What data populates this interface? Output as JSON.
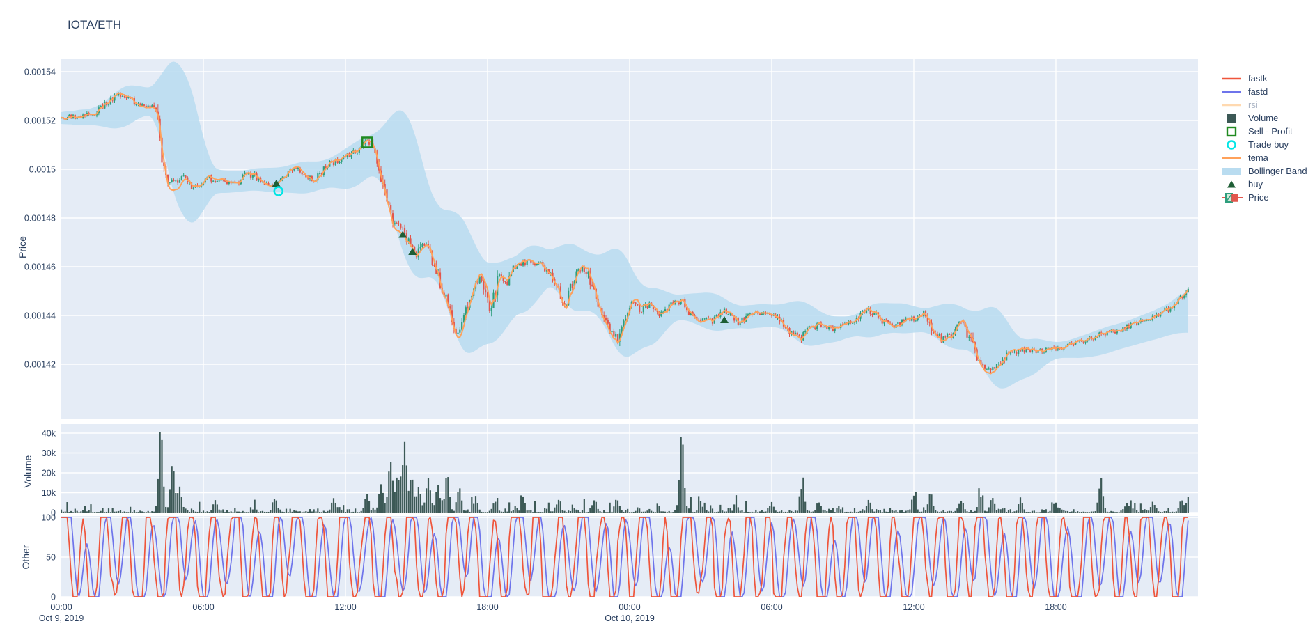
{
  "title": "IOTA/ETH",
  "colors": {
    "plot_bg": "#e5ecf6",
    "grid": "#ffffff",
    "text": "#2a3f5f",
    "muted_text": "#aab4c4",
    "candle_up": "#2f9e7d",
    "candle_down": "#e2564d",
    "volume_bar": "#3c5956",
    "tema": "#ffa15a",
    "bollinger": "#b9dcf0",
    "fastk": "#ef553b",
    "fastd": "#6e74eb",
    "rsi_muted": "#ffd9b0",
    "buy_marker": "#1e5e35",
    "sell_profit": "#208a20",
    "trade_buy": "#00e5e5"
  },
  "legend": {
    "items": [
      {
        "label": "fastk",
        "swatch": "line",
        "color": "#ef553b",
        "muted": false
      },
      {
        "label": "fastd",
        "swatch": "line",
        "color": "#6e74eb",
        "muted": false
      },
      {
        "label": "rsi",
        "swatch": "line",
        "color": "#ffd9b0",
        "muted": true
      },
      {
        "label": "Volume",
        "swatch": "square-fill",
        "color": "#3c5956",
        "muted": false
      },
      {
        "label": "Sell - Profit",
        "swatch": "square-open",
        "color": "#208a20",
        "muted": false
      },
      {
        "label": "Trade buy",
        "swatch": "circle-open",
        "color": "#00e5e5",
        "muted": false
      },
      {
        "label": "tema",
        "swatch": "line",
        "color": "#ffa15a",
        "muted": false
      },
      {
        "label": "Bollinger Band",
        "swatch": "band",
        "color": "#b9dcf0",
        "muted": false
      },
      {
        "label": "buy",
        "swatch": "triangle",
        "color": "#1e5e35",
        "muted": false
      },
      {
        "label": "Price",
        "swatch": "candle",
        "color": "#2f9e7d",
        "muted": false
      }
    ]
  },
  "axes": {
    "x": {
      "ticks": [
        {
          "hour": 0,
          "label": "00:00",
          "date": "Oct 9, 2019"
        },
        {
          "hour": 6,
          "label": "06:00",
          "date": ""
        },
        {
          "hour": 12,
          "label": "12:00",
          "date": ""
        },
        {
          "hour": 18,
          "label": "18:00",
          "date": ""
        },
        {
          "hour": 24,
          "label": "00:00",
          "date": "Oct 10, 2019"
        },
        {
          "hour": 30,
          "label": "06:00",
          "date": ""
        },
        {
          "hour": 36,
          "label": "12:00",
          "date": ""
        },
        {
          "hour": 42,
          "label": "18:00",
          "date": ""
        }
      ]
    },
    "price": {
      "title": "Price",
      "tick_labels": [
        "0.00154",
        "0.00152",
        "0.0015",
        "0.00148",
        "0.00146",
        "0.00144",
        "0.00142"
      ],
      "tick_values": [
        0.00154,
        0.00152,
        0.0015,
        0.00148,
        0.00146,
        0.00144,
        0.00142
      ]
    },
    "volume": {
      "title": "Volume",
      "tick_labels": [
        "40k",
        "30k",
        "20k",
        "10k",
        "0"
      ],
      "tick_values": [
        40000,
        30000,
        20000,
        10000,
        0
      ]
    },
    "other": {
      "title": "Other",
      "tick_labels": [
        "100",
        "50",
        "0"
      ],
      "tick_values": [
        100,
        50,
        0
      ]
    }
  },
  "chart_data": [
    {
      "type": "candlestick",
      "panel": "price",
      "pair": "IOTA/ETH",
      "x_unit": "hours since Oct 9, 2019 00:00",
      "x_range": [
        0,
        48
      ],
      "interval_minutes": 5,
      "y_range": [
        0.0013977,
        0.0015451
      ],
      "overlays": [
        "tema",
        "Bollinger Band",
        "buy",
        "Sell - Profit",
        "Trade buy"
      ],
      "close_keypoints": [
        [
          0,
          0.001521
        ],
        [
          0.7,
          0.0015215
        ],
        [
          1.4,
          0.001523
        ],
        [
          2.0,
          0.001528
        ],
        [
          2.4,
          0.001531
        ],
        [
          2.8,
          0.001529
        ],
        [
          3.3,
          0.001526
        ],
        [
          3.9,
          0.0015255
        ],
        [
          4.05,
          0.001522
        ],
        [
          4.3,
          0.0015
        ],
        [
          4.55,
          0.001494
        ],
        [
          5.1,
          0.0014965
        ],
        [
          5.6,
          0.001492
        ],
        [
          6.2,
          0.0014965
        ],
        [
          6.8,
          0.001495
        ],
        [
          7.4,
          0.0014945
        ],
        [
          7.9,
          0.0014985
        ],
        [
          8.3,
          0.001496
        ],
        [
          8.7,
          0.001493
        ],
        [
          9.1,
          0.0014935
        ],
        [
          9.5,
          0.0014975
        ],
        [
          9.9,
          0.001501
        ],
        [
          10.3,
          0.001498
        ],
        [
          10.7,
          0.001495
        ],
        [
          11.2,
          0.0015015
        ],
        [
          11.7,
          0.001504
        ],
        [
          12.2,
          0.001506
        ],
        [
          12.6,
          0.001509
        ],
        [
          12.9,
          0.001511
        ],
        [
          13.1,
          0.001509
        ],
        [
          13.4,
          0.001502
        ],
        [
          13.7,
          0.001489
        ],
        [
          14.0,
          0.001479
        ],
        [
          14.4,
          0.001475
        ],
        [
          14.7,
          0.001469
        ],
        [
          15.0,
          0.001464
        ],
        [
          15.3,
          0.00147
        ],
        [
          15.6,
          0.001465
        ],
        [
          15.9,
          0.001456
        ],
        [
          16.3,
          0.001445
        ],
        [
          16.7,
          0.001433
        ],
        [
          17.0,
          0.00144
        ],
        [
          17.4,
          0.001452
        ],
        [
          17.7,
          0.001455
        ],
        [
          18.1,
          0.0014415
        ],
        [
          18.5,
          0.0014575
        ],
        [
          18.8,
          0.001453
        ],
        [
          19.2,
          0.001461
        ],
        [
          19.7,
          0.001462
        ],
        [
          20.2,
          0.001461
        ],
        [
          20.6,
          0.001458
        ],
        [
          21.0,
          0.00145
        ],
        [
          21.3,
          0.0014445
        ],
        [
          21.8,
          0.00146
        ],
        [
          22.2,
          0.001458
        ],
        [
          22.6,
          0.001447
        ],
        [
          23.1,
          0.001435
        ],
        [
          23.5,
          0.00143
        ],
        [
          23.8,
          0.00144
        ],
        [
          24.1,
          0.001445
        ],
        [
          24.5,
          0.001442
        ],
        [
          24.9,
          0.001445
        ],
        [
          25.3,
          0.00144
        ],
        [
          25.7,
          0.001444
        ],
        [
          26.2,
          0.001446
        ],
        [
          26.6,
          0.00144
        ],
        [
          27.0,
          0.001438
        ],
        [
          27.5,
          0.001438
        ],
        [
          27.9,
          0.001442
        ],
        [
          28.3,
          0.00144
        ],
        [
          28.6,
          0.001437
        ],
        [
          29.0,
          0.00144
        ],
        [
          29.5,
          0.001441
        ],
        [
          30.0,
          0.001441
        ],
        [
          30.4,
          0.001437
        ],
        [
          30.8,
          0.001433
        ],
        [
          31.2,
          0.00143
        ],
        [
          31.6,
          0.001435
        ],
        [
          32.1,
          0.001436
        ],
        [
          32.6,
          0.001434
        ],
        [
          33.0,
          0.001436
        ],
        [
          33.5,
          0.001438
        ],
        [
          34.0,
          0.001443
        ],
        [
          34.4,
          0.00144
        ],
        [
          34.8,
          0.001437
        ],
        [
          35.2,
          0.001436
        ],
        [
          35.7,
          0.001438
        ],
        [
          36.1,
          0.001439
        ],
        [
          36.5,
          0.001441
        ],
        [
          36.8,
          0.001434
        ],
        [
          37.2,
          0.00143
        ],
        [
          37.6,
          0.001432
        ],
        [
          38.0,
          0.001437
        ],
        [
          38.4,
          0.00143
        ],
        [
          38.7,
          0.001421
        ],
        [
          39.1,
          0.001417
        ],
        [
          39.5,
          0.001419
        ],
        [
          40.0,
          0.001424
        ],
        [
          40.6,
          0.001426
        ],
        [
          41.2,
          0.001425
        ],
        [
          41.8,
          0.001426
        ],
        [
          42.4,
          0.001427
        ],
        [
          43.0,
          0.001429
        ],
        [
          43.6,
          0.001431
        ],
        [
          44.2,
          0.001433
        ],
        [
          44.8,
          0.001434
        ],
        [
          45.4,
          0.001437
        ],
        [
          46.0,
          0.001439
        ],
        [
          46.5,
          0.001441
        ],
        [
          47.0,
          0.001445
        ],
        [
          47.35,
          0.001448
        ],
        [
          47.7,
          0.001452
        ]
      ],
      "markers": {
        "buy": [
          [
            9.08,
            0.001494
          ],
          [
            14.42,
            0.001473
          ],
          [
            14.83,
            0.001466
          ],
          [
            28.0,
            0.001438
          ]
        ],
        "trade_buy": [
          [
            9.17,
            0.001491
          ]
        ],
        "sell_profit": [
          [
            12.92,
            0.001511
          ]
        ]
      },
      "bollinger": {
        "window_candles": 24,
        "stddev_mult": 2.05
      },
      "tema_span": 9
    },
    {
      "type": "bar",
      "panel": "volume",
      "y_range": [
        0,
        44500
      ],
      "base_noise_range": [
        250,
        2400
      ],
      "spikes": [
        [
          4.2,
          40500
        ],
        [
          4.7,
          24000
        ],
        [
          5.0,
          12000
        ],
        [
          6.5,
          6000
        ],
        [
          9.0,
          6500
        ],
        [
          11.5,
          7000
        ],
        [
          12.9,
          9000
        ],
        [
          13.5,
          14000
        ],
        [
          13.9,
          25500
        ],
        [
          14.2,
          18000
        ],
        [
          14.5,
          35000
        ],
        [
          14.8,
          16000
        ],
        [
          15.1,
          12000
        ],
        [
          15.5,
          17000
        ],
        [
          15.9,
          13500
        ],
        [
          16.3,
          17500
        ],
        [
          16.8,
          9500
        ],
        [
          17.5,
          6500
        ],
        [
          18.3,
          5000
        ],
        [
          19.5,
          4500
        ],
        [
          21.0,
          6000
        ],
        [
          22.5,
          5500
        ],
        [
          23.5,
          5000
        ],
        [
          26.2,
          38500
        ],
        [
          27.0,
          4200
        ],
        [
          28.5,
          3800
        ],
        [
          30.0,
          4200
        ],
        [
          31.3,
          12500
        ],
        [
          32.0,
          4800
        ],
        [
          34.1,
          6200
        ],
        [
          36.0,
          8000
        ],
        [
          36.7,
          9500
        ],
        [
          38.0,
          5200
        ],
        [
          38.8,
          7200
        ],
        [
          39.3,
          6000
        ],
        [
          40.5,
          4200
        ],
        [
          42.0,
          3600
        ],
        [
          43.9,
          15500
        ],
        [
          45.0,
          4200
        ],
        [
          46.1,
          4800
        ],
        [
          47.3,
          6200
        ],
        [
          47.6,
          7500
        ]
      ]
    },
    {
      "type": "line",
      "panel": "other",
      "series": [
        {
          "name": "fastk",
          "color": "#ef553b",
          "range": [
            0,
            100
          ],
          "behavior": "stochastic %K, rapid full-range swings clipped at 0 and 100"
        },
        {
          "name": "fastd",
          "color": "#6e74eb",
          "range": [
            0,
            100
          ],
          "behavior": "smoothed %D of fastk, clipped at 0 and 100"
        },
        {
          "name": "rsi",
          "color": "#ffa15a",
          "visible": false
        }
      ],
      "y_range": [
        0,
        100
      ]
    }
  ]
}
